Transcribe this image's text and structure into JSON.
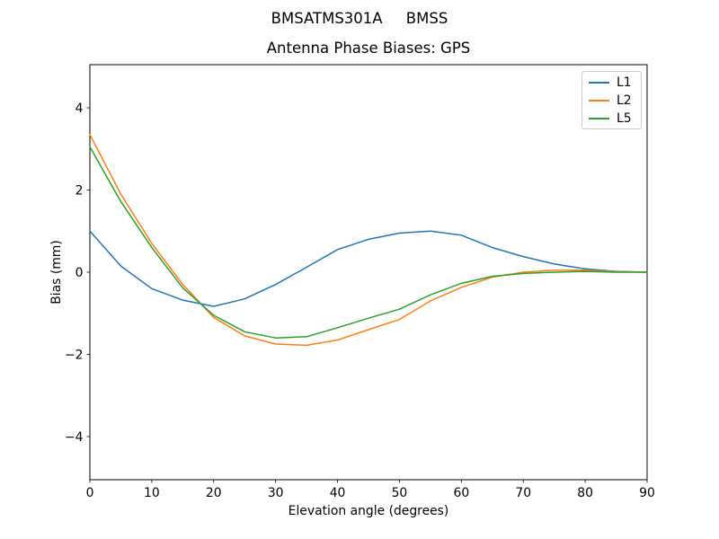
{
  "figure": {
    "background": "#ffffff",
    "text_color": "#000000",
    "spine_color": "#000000",
    "legend_border_color": "#cccccc"
  },
  "chart_data": {
    "type": "line",
    "suptitle": "BMSATMS301A     BMSS",
    "title": "Antenna Phase Biases: GPS",
    "xlabel": "Elevation angle (degrees)",
    "ylabel": "Bias (mm)",
    "xlim": [
      0,
      90
    ],
    "ylim": [
      -5.05,
      5.05
    ],
    "xticks": [
      0,
      10,
      20,
      30,
      40,
      50,
      60,
      70,
      80,
      90
    ],
    "yticks": [
      -4,
      -2,
      0,
      2,
      4
    ],
    "grid": false,
    "legend_position": "upper right",
    "x": [
      0,
      5,
      10,
      15,
      20,
      25,
      30,
      35,
      40,
      45,
      50,
      55,
      60,
      65,
      70,
      75,
      80,
      85,
      90
    ],
    "series": [
      {
        "name": "L1",
        "color": "#1f77b4",
        "values": [
          1.0,
          0.15,
          -0.4,
          -0.68,
          -0.83,
          -0.65,
          -0.3,
          0.12,
          0.55,
          0.8,
          0.95,
          1.0,
          0.9,
          0.6,
          0.38,
          0.2,
          0.08,
          0.02,
          0.0
        ]
      },
      {
        "name": "L2",
        "color": "#ff7f0e",
        "values": [
          3.35,
          1.9,
          0.7,
          -0.3,
          -1.1,
          -1.55,
          -1.75,
          -1.78,
          -1.65,
          -1.4,
          -1.15,
          -0.7,
          -0.37,
          -0.12,
          0.0,
          0.05,
          0.05,
          0.01,
          0.0
        ]
      },
      {
        "name": "L5",
        "color": "#2ca02c",
        "values": [
          3.05,
          1.72,
          0.6,
          -0.38,
          -1.05,
          -1.45,
          -1.6,
          -1.57,
          -1.35,
          -1.12,
          -0.9,
          -0.55,
          -0.27,
          -0.1,
          -0.03,
          0.0,
          0.02,
          0.0,
          0.0
        ]
      }
    ]
  }
}
